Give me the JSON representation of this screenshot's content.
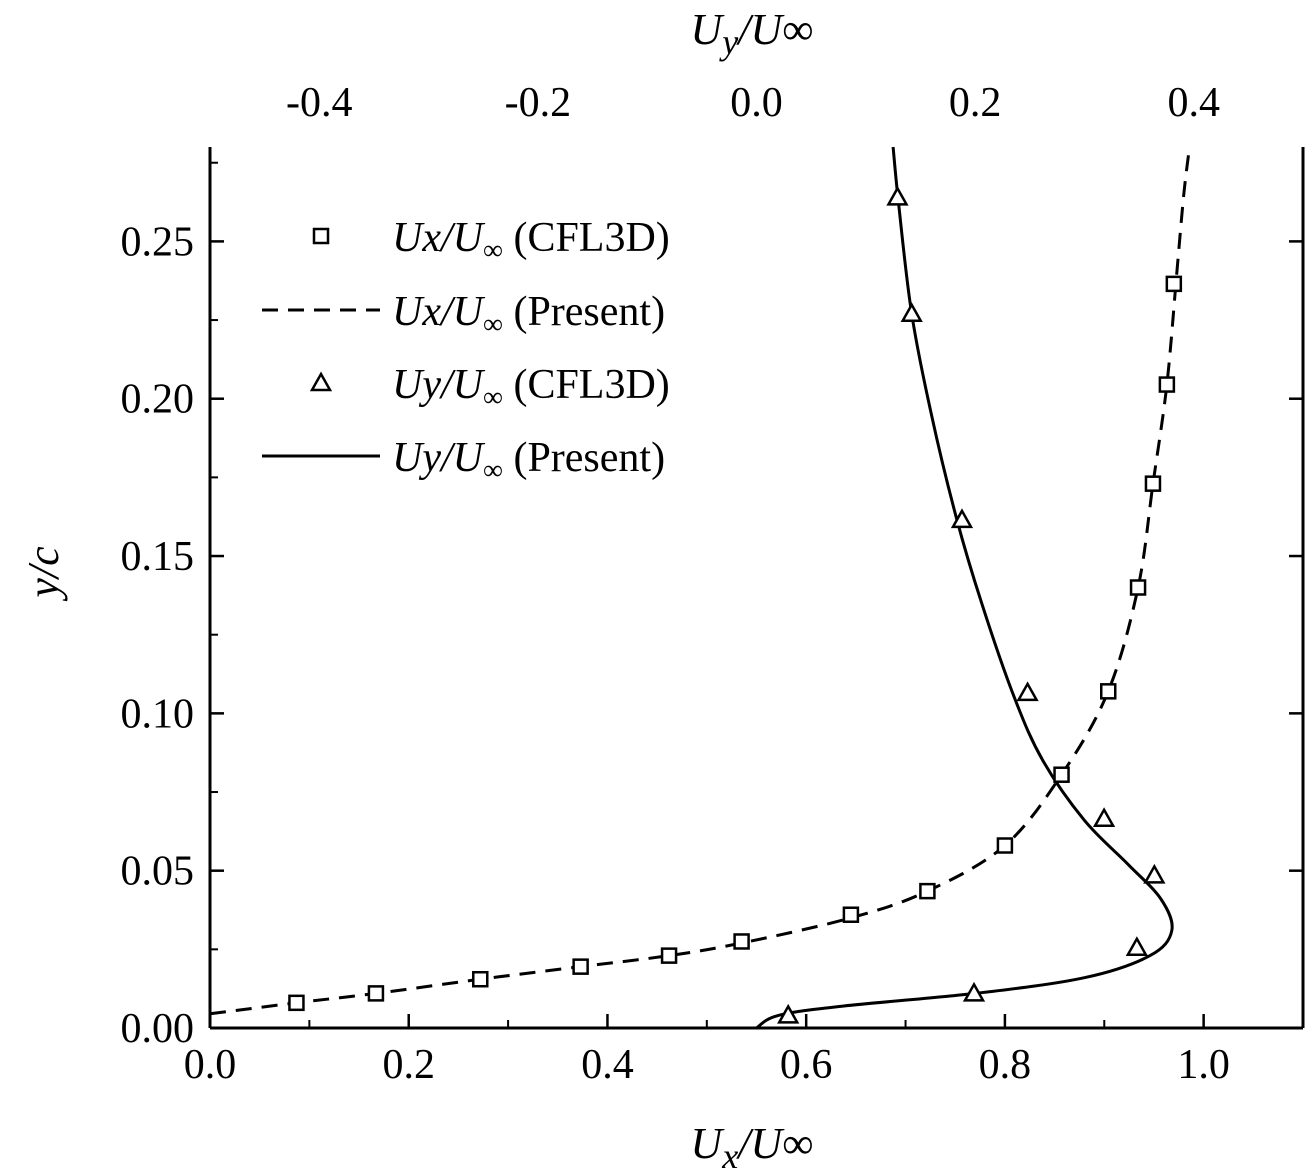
{
  "chart_data": {
    "type": "line",
    "bottom_axis": {
      "label_base": "U",
      "label_sub": "x",
      "label_denom": "/U",
      "label_inf": "∞",
      "range": [
        0.0,
        1.1
      ],
      "ticks": [
        0.0,
        0.2,
        0.4,
        0.6,
        0.8,
        1.0
      ],
      "tick_labels": [
        "0.0",
        "0.2",
        "0.4",
        "0.6",
        "0.8",
        "1.0"
      ]
    },
    "top_axis": {
      "label_base": "U",
      "label_sub": "y",
      "label_denom": "/U",
      "label_inf": "∞",
      "range": [
        -0.5,
        0.5
      ],
      "ticks": [
        -0.4,
        -0.2,
        0.0,
        0.2,
        0.4
      ],
      "tick_labels": [
        "-0.4",
        "-0.2",
        "0.0",
        "0.2",
        "0.4"
      ]
    },
    "left_axis": {
      "label": "y/c",
      "range": [
        0.0,
        0.28
      ],
      "ticks": [
        0.0,
        0.05,
        0.1,
        0.15,
        0.2,
        0.25
      ],
      "tick_labels": [
        "0.00",
        "0.05",
        "0.10",
        "0.15",
        "0.20",
        "0.25"
      ]
    },
    "legend": {
      "placement": "upper-left",
      "entries": [
        {
          "main": "Ux/U",
          "sub": "∞",
          "suffix": " (CFL3D)",
          "marker": "square"
        },
        {
          "main": "Ux/U",
          "sub": "∞",
          "suffix": " (Present)",
          "line": "dashed"
        },
        {
          "main": "Uy/U",
          "sub": "∞",
          "suffix": " (CFL3D)",
          "marker": "triangle"
        },
        {
          "main": "Uy/U",
          "sub": "∞",
          "suffix": " (Present)",
          "line": "solid"
        }
      ]
    },
    "series": [
      {
        "name": "Ux/U∞ (CFL3D)",
        "axis": "bottom",
        "marker": "square",
        "points": [
          [
            0.087,
            0.008
          ],
          [
            0.167,
            0.011
          ],
          [
            0.272,
            0.0155
          ],
          [
            0.373,
            0.0195
          ],
          [
            0.462,
            0.023
          ],
          [
            0.535,
            0.0275
          ],
          [
            0.645,
            0.036
          ],
          [
            0.722,
            0.0435
          ],
          [
            0.8,
            0.058
          ],
          [
            0.857,
            0.0805
          ],
          [
            0.904,
            0.107
          ],
          [
            0.934,
            0.14
          ],
          [
            0.949,
            0.173
          ],
          [
            0.963,
            0.2045
          ],
          [
            0.97,
            0.2365
          ]
        ]
      },
      {
        "name": "Ux/U∞ (Present)",
        "axis": "bottom",
        "line": "dashed",
        "points": [
          [
            0.0,
            0.0045
          ],
          [
            0.087,
            0.008
          ],
          [
            0.167,
            0.011
          ],
          [
            0.272,
            0.0155
          ],
          [
            0.373,
            0.0195
          ],
          [
            0.462,
            0.023
          ],
          [
            0.535,
            0.027
          ],
          [
            0.645,
            0.035
          ],
          [
            0.722,
            0.0435
          ],
          [
            0.8,
            0.058
          ],
          [
            0.857,
            0.0805
          ],
          [
            0.904,
            0.107
          ],
          [
            0.934,
            0.14
          ],
          [
            0.949,
            0.173
          ],
          [
            0.963,
            0.2045
          ],
          [
            0.973,
            0.24
          ],
          [
            0.98,
            0.265
          ],
          [
            0.985,
            0.278
          ]
        ]
      },
      {
        "name": "Uy/U∞ (CFL3D)",
        "axis": "top",
        "marker": "triangle",
        "points": [
          [
            0.029,
            0.004
          ],
          [
            0.199,
            0.011
          ],
          [
            0.348,
            0.0255
          ],
          [
            0.364,
            0.0485
          ],
          [
            0.318,
            0.0665
          ],
          [
            0.248,
            0.1065
          ],
          [
            0.188,
            0.1615
          ],
          [
            0.142,
            0.227
          ],
          [
            0.129,
            0.264
          ]
        ]
      },
      {
        "name": "Uy/U∞ (Present)",
        "axis": "top",
        "line": "solid",
        "points": [
          [
            0.0,
            0.0
          ],
          [
            0.02,
            0.004
          ],
          [
            0.08,
            0.007
          ],
          [
            0.2,
            0.011
          ],
          [
            0.3,
            0.016
          ],
          [
            0.36,
            0.023
          ],
          [
            0.38,
            0.031
          ],
          [
            0.37,
            0.041
          ],
          [
            0.34,
            0.052
          ],
          [
            0.3,
            0.066
          ],
          [
            0.262,
            0.085
          ],
          [
            0.236,
            0.105
          ],
          [
            0.206,
            0.135
          ],
          [
            0.183,
            0.162
          ],
          [
            0.16,
            0.195
          ],
          [
            0.142,
            0.227
          ],
          [
            0.13,
            0.262
          ],
          [
            0.125,
            0.28
          ]
        ]
      }
    ]
  }
}
